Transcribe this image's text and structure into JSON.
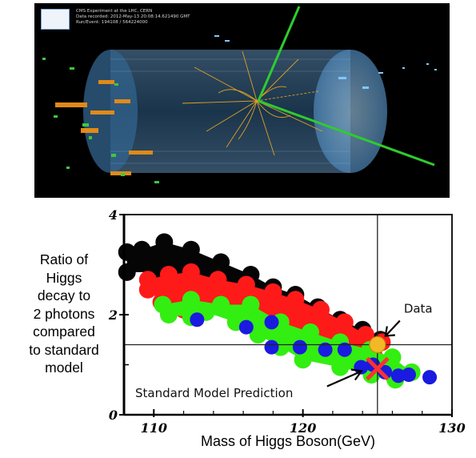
{
  "event_display": {
    "caption_lines": [
      "CMS Experiment at the LHC, CERN",
      "Data recorded: 2012-May-13 20:08:14.621490 GMT",
      "Run/Event: 194108 / 564224000"
    ]
  },
  "chart_data": {
    "type": "scatter",
    "title": "",
    "xlabel": "Mass of Higgs Boson(GeV)",
    "ylabel": "Ratio of Higgs decay to 2 photons compared to standard model",
    "ylabel_lines": [
      "Ratio of",
      "Higgs",
      " decay to",
      "2 photons",
      "compared",
      "to standard",
      "model"
    ],
    "xlim": [
      108,
      130
    ],
    "ylim": [
      0,
      4
    ],
    "xticks": [
      110,
      120,
      130
    ],
    "xtick_labels": [
      "110",
      "120",
      "130"
    ],
    "yticks": [
      0,
      2,
      4
    ],
    "grid": false,
    "colors": {
      "black": "#050505",
      "red": "#ff1a1a",
      "green": "#33ee11",
      "blue": "#1a1ae0",
      "data_point": "#f2b825",
      "sm_cross": "#ff3030"
    },
    "bands": [
      {
        "name": "",
        "color": "black",
        "points": [
          [
            108.2,
            3.25
          ],
          [
            109.2,
            3.3
          ],
          [
            110.7,
            3.45
          ],
          [
            112.5,
            3.3
          ],
          [
            114.5,
            3.05
          ],
          [
            116.5,
            2.8
          ],
          [
            118,
            2.55
          ],
          [
            119.5,
            2.4
          ],
          [
            121,
            2.15
          ],
          [
            122.5,
            1.9
          ],
          [
            124,
            1.7
          ],
          [
            125.2,
            1.5
          ],
          [
            124.7,
            1.25
          ],
          [
            123,
            1.4
          ],
          [
            120.8,
            1.6
          ],
          [
            119,
            1.8
          ],
          [
            117,
            2.0
          ],
          [
            115,
            2.35
          ],
          [
            113,
            2.6
          ],
          [
            111.5,
            2.85
          ],
          [
            110,
            2.85
          ],
          [
            108.2,
            2.85
          ]
        ]
      },
      {
        "name": "",
        "color": "red",
        "points": [
          [
            109.6,
            2.7
          ],
          [
            111,
            2.8
          ],
          [
            112.5,
            2.85
          ],
          [
            114.3,
            2.7
          ],
          [
            116.2,
            2.6
          ],
          [
            118,
            2.45
          ],
          [
            119.5,
            2.3
          ],
          [
            121.2,
            2.1
          ],
          [
            122.8,
            1.85
          ],
          [
            124.2,
            1.6
          ],
          [
            125.3,
            1.45
          ],
          [
            124.8,
            1.15
          ],
          [
            123,
            1.25
          ],
          [
            121,
            1.45
          ],
          [
            119,
            1.65
          ],
          [
            117,
            1.9
          ],
          [
            115,
            2.15
          ],
          [
            113.5,
            2.1
          ],
          [
            112,
            2.1
          ],
          [
            110.5,
            2.25
          ],
          [
            109.6,
            2.5
          ]
        ]
      },
      {
        "name": "",
        "color": "green",
        "points": [
          [
            110.6,
            2.2
          ],
          [
            112.5,
            2.3
          ],
          [
            114.5,
            2.2
          ],
          [
            116.5,
            2.2
          ],
          [
            118.5,
            1.85
          ],
          [
            120.5,
            1.65
          ],
          [
            122.5,
            1.45
          ],
          [
            124.5,
            1.3
          ],
          [
            126,
            1.15
          ],
          [
            127.3,
            0.85
          ],
          [
            126.2,
            0.7
          ],
          [
            124.6,
            0.8
          ],
          [
            122.5,
            0.95
          ],
          [
            120,
            1.1
          ],
          [
            118.5,
            1.35
          ],
          [
            117,
            1.6
          ],
          [
            115.5,
            1.85
          ],
          [
            113.5,
            2.05
          ],
          [
            112.5,
            1.95
          ],
          [
            111,
            2.0
          ]
        ]
      }
    ],
    "blue_points": [
      [
        112.9,
        1.9
      ],
      [
        116.2,
        1.75
      ],
      [
        117.9,
        1.85
      ],
      [
        117.9,
        1.35
      ],
      [
        119.8,
        1.35
      ],
      [
        121.5,
        1.3
      ],
      [
        122.8,
        1.3
      ],
      [
        123.9,
        0.95
      ],
      [
        124.7,
        1.0
      ],
      [
        125.5,
        0.85
      ],
      [
        126.4,
        0.78
      ],
      [
        127.1,
        0.8
      ],
      [
        128.5,
        0.75
      ]
    ],
    "data_point": {
      "label": "Data",
      "x": 125.0,
      "y": 1.4
    },
    "sm_prediction": {
      "label": "Standard Model Prediction",
      "x": 125.0,
      "y": 0.92
    },
    "reference_lines": {
      "x": 125.0,
      "y": 1.4
    }
  }
}
